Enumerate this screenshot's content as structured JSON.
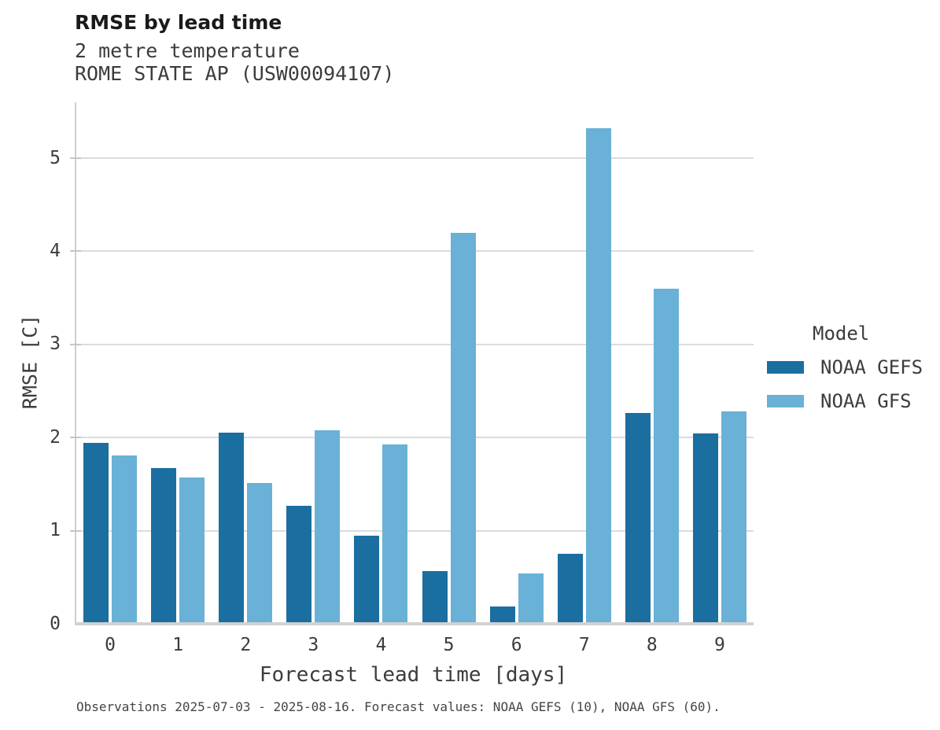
{
  "chart_data": {
    "type": "bar",
    "title": "RMSE by lead time",
    "subtitle": "2 metre temperature",
    "station": "ROME STATE AP (USW00094107)",
    "xlabel": "Forecast lead time [days]",
    "ylabel": "RMSE [C]",
    "categories": [
      "0",
      "1",
      "2",
      "3",
      "4",
      "5",
      "6",
      "7",
      "8",
      "9"
    ],
    "series": [
      {
        "name": "NOAA GEFS",
        "color": "#1B6EA0",
        "values": [
          1.94,
          1.67,
          2.05,
          1.27,
          0.95,
          0.57,
          0.19,
          0.75,
          2.26,
          2.04
        ]
      },
      {
        "name": "NOAA GFS",
        "color": "#69B1D6",
        "values": [
          1.81,
          1.57,
          1.51,
          2.08,
          1.93,
          4.2,
          0.54,
          5.32,
          3.6,
          2.28
        ]
      }
    ],
    "ylim": [
      0,
      5.6
    ],
    "yticks": [
      0,
      1,
      2,
      3,
      4,
      5
    ],
    "grid": "horizontal",
    "legend": {
      "title": "Model",
      "position": "right"
    }
  },
  "footer": {
    "note": "Observations 2025-07-03 - 2025-08-16. Forecast values: NOAA GEFS (10), NOAA GFS (60)."
  }
}
